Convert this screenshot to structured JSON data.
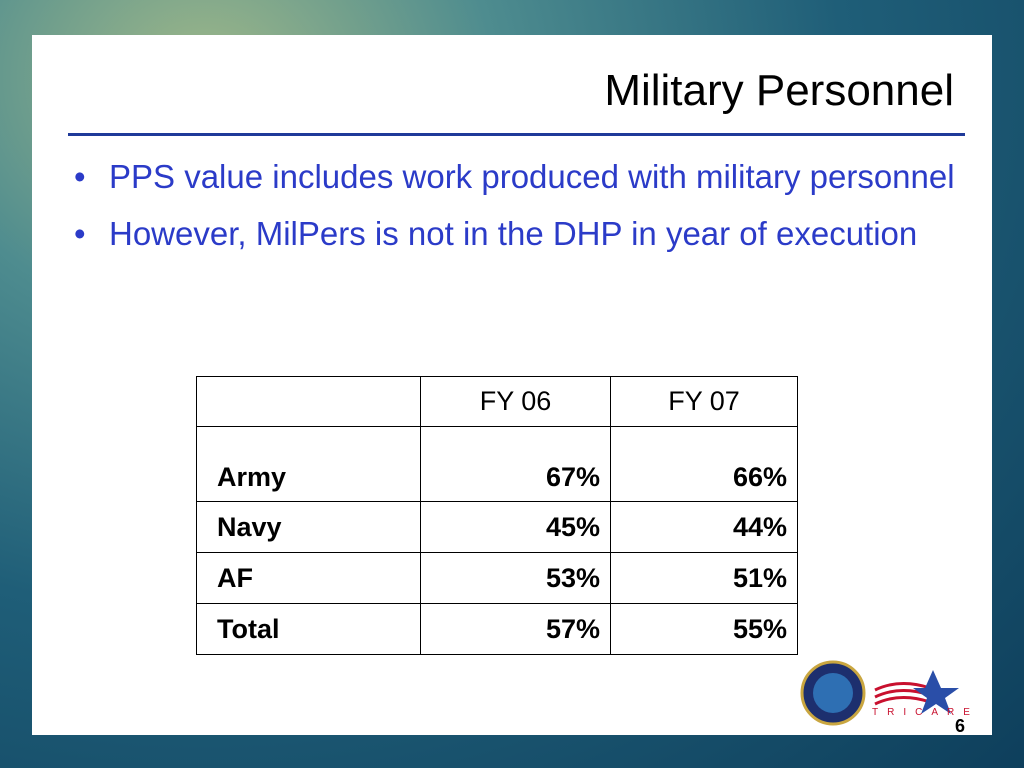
{
  "title": "Military Personnel",
  "bullets": [
    "PPS value includes work produced with military personnel",
    "However, MilPers is not in the DHP in year of execution"
  ],
  "table": {
    "header": [
      "FY 06",
      "FY 07"
    ],
    "rows": [
      [
        "Army",
        "67%",
        "66%"
      ],
      [
        "Navy",
        "45%",
        "44%"
      ],
      [
        "AF",
        "53%",
        "51%"
      ],
      [
        "Total",
        "57%",
        "55%"
      ]
    ]
  },
  "logo": {
    "text": "TRICARE"
  },
  "page_number": "6"
}
